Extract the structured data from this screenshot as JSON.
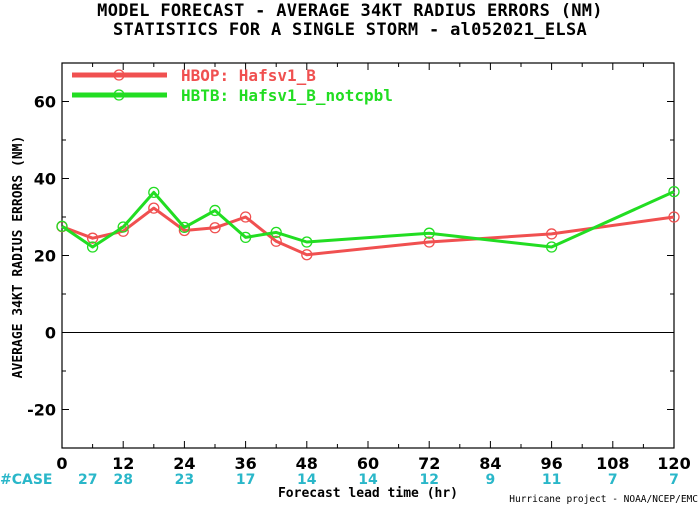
{
  "title_line1": "MODEL FORECAST - AVERAGE 34KT RADIUS ERRORS (NM)",
  "title_line2": "STATISTICS FOR A SINGLE STORM - al052021_ELSA",
  "credit": "Hurricane project - NOAA/NCEP/EMC",
  "case_label": "#CASE",
  "colors": {
    "hbop": "#f05050",
    "hbtb": "#22dd22",
    "case": "#2ab7c9",
    "zero_line": "#000000"
  },
  "chart_data": {
    "type": "line",
    "xlabel": "Forecast lead time (hr)",
    "ylabel": "AVERAGE 34KT RADIUS ERRORS (NM)",
    "xlim": [
      0,
      120
    ],
    "ylim": [
      -30,
      70
    ],
    "xticks": [
      0,
      12,
      24,
      36,
      48,
      60,
      72,
      84,
      96,
      108,
      120
    ],
    "yticks": [
      -20,
      0,
      20,
      40,
      60
    ],
    "case_counts": [
      "27",
      "28",
      "23",
      "17",
      "14",
      "14",
      "12",
      "9",
      "11",
      "7",
      "7"
    ],
    "legend_position": "top-left",
    "series": [
      {
        "name": "HBOP: Hafsv1_B",
        "color": "#f05050",
        "x": [
          0,
          6,
          12,
          18,
          24,
          30,
          36,
          42,
          48,
          72,
          96,
          120
        ],
        "y": [
          27.5,
          24.5,
          26.3,
          32.3,
          26.5,
          27.2,
          30.0,
          23.7,
          20.2,
          23.5,
          25.6,
          30.0
        ]
      },
      {
        "name": "HBTB: Hafsv1_B_notcpbl",
        "color": "#22dd22",
        "x": [
          0,
          6,
          12,
          18,
          24,
          30,
          36,
          42,
          48,
          72,
          96,
          120
        ],
        "y": [
          27.6,
          22.2,
          27.4,
          36.4,
          27.3,
          31.7,
          24.7,
          26.0,
          23.5,
          25.8,
          22.2,
          36.6
        ]
      }
    ]
  }
}
